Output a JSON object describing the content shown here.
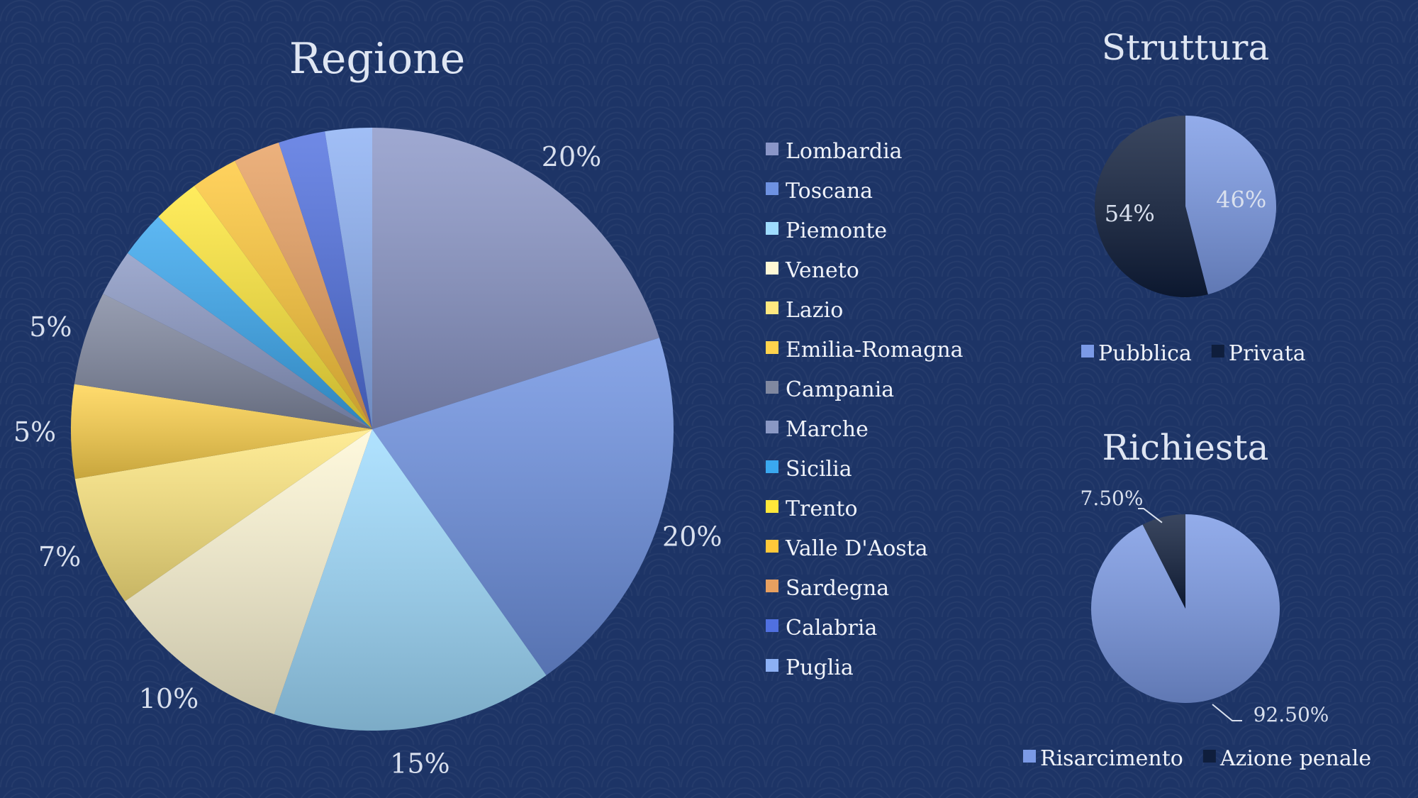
{
  "chart_data": [
    {
      "type": "pie",
      "title": "Regione",
      "categories": [
        "Lombardia",
        "Toscana",
        "Piemonte",
        "Veneto",
        "Lazio",
        "Emilia-Romagna",
        "Campania",
        "Marche",
        "Sicilia",
        "Trento",
        "Valle D'Aosta",
        "Sardegna",
        "Calabria",
        "Puglia"
      ],
      "values": [
        20,
        20,
        15,
        10,
        7,
        5,
        5,
        2.5,
        2.5,
        2.5,
        2.5,
        2.5,
        2.5,
        2.5
      ],
      "data_labels": [
        "20%",
        "20%",
        "15%",
        "10%",
        "7%",
        "5%",
        "5%",
        "",
        "",
        "",
        "",
        "",
        "",
        ""
      ],
      "colors": [
        "#8a96c8",
        "#6e92e2",
        "#9fdcff",
        "#fff8d6",
        "#ffe880",
        "#ffd34d",
        "#8088a0",
        "#8a98c4",
        "#3aa8f0",
        "#ffe83a",
        "#ffc83a",
        "#e8a060",
        "#5070e0",
        "#8cb0f4"
      ],
      "legend_position": "right"
    },
    {
      "type": "pie",
      "title": "Struttura",
      "categories": [
        "Pubblica",
        "Privata"
      ],
      "values": [
        46,
        54
      ],
      "data_labels": [
        "46%",
        "54%"
      ],
      "colors": [
        "#7b9ae6",
        "#0f1e3c"
      ],
      "legend_position": "bottom"
    },
    {
      "type": "pie",
      "title": "Richiesta",
      "categories": [
        "Risarcimento",
        "Azione penale"
      ],
      "values": [
        92.5,
        7.5
      ],
      "data_labels": [
        "92.50%",
        "7.50%"
      ],
      "colors": [
        "#7b9ae6",
        "#0f1e3c"
      ],
      "legend_position": "bottom"
    }
  ]
}
